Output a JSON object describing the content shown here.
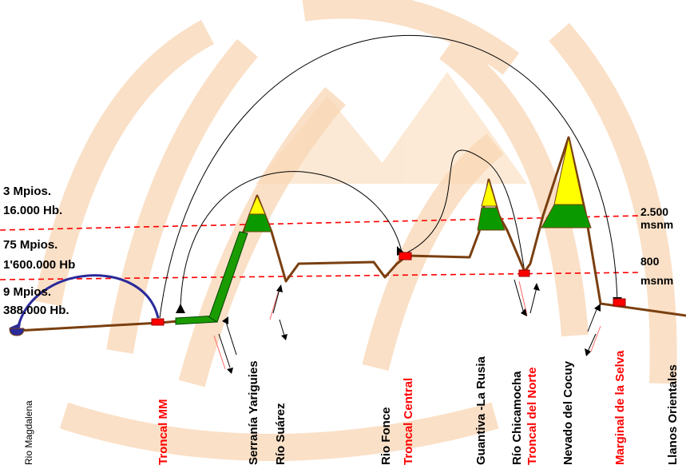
{
  "colors": {
    "terrain": "#7a3f10",
    "road": "#1a9c00",
    "snow": "#ffff00",
    "forest": "#0a9a00",
    "node": "#ff0000",
    "threshold_line": "#ff0000",
    "arc": "#000000",
    "migration_arc": "#2a2a9a",
    "watermark": "#f6c89a"
  },
  "population_levels": {
    "high": {
      "municipalities": "3 Mpios.",
      "inhabitants": "16.000 Hb."
    },
    "mid": {
      "municipalities": "75 Mpios.",
      "inhabitants": "1'600.000 Hb"
    },
    "low": {
      "municipalities": "9 Mpios.",
      "inhabitants": "388.000 Hb."
    }
  },
  "altitude_lines": {
    "upper": {
      "value": "2.500",
      "unit": "msnm"
    },
    "lower": {
      "value": "800",
      "unit": "msnm"
    }
  },
  "places": [
    {
      "name": "Rio Magdalena",
      "style": "normal"
    },
    {
      "name": "Troncal MM",
      "style": "highlight"
    },
    {
      "name": "Serranía Yariguies",
      "style": "normal"
    },
    {
      "name": "Río Suárez",
      "style": "normal"
    },
    {
      "name": "Rio Fonce",
      "style": "normal"
    },
    {
      "name": "Troncal Central",
      "style": "highlight"
    },
    {
      "name": "Guantiva -La Rusia",
      "style": "normal"
    },
    {
      "name": "Río Chicamocha",
      "style": "normal"
    },
    {
      "name": "Troncal del Norte",
      "style": "highlight"
    },
    {
      "name": "Nevado del Cocuy",
      "style": "normal"
    },
    {
      "name": "Marginal de la Selva",
      "style": "highlight"
    },
    {
      "name": "Llanos Orientales",
      "style": "normal"
    }
  ]
}
